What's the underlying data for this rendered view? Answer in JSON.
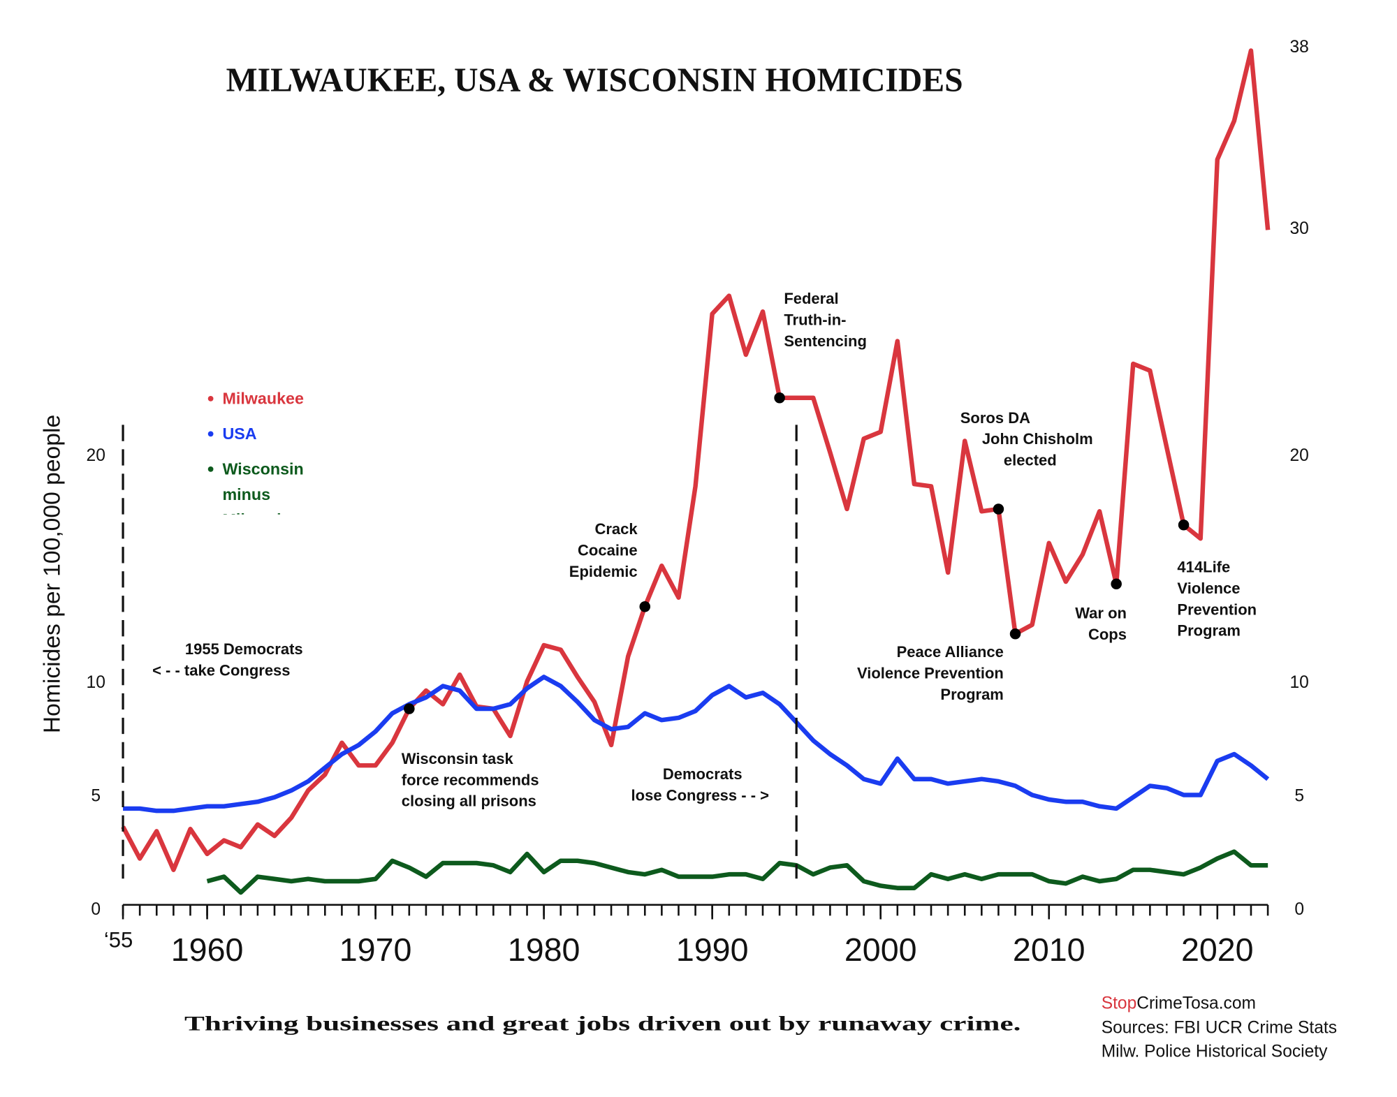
{
  "chart_data": {
    "type": "line",
    "title": "MILWAUKEE, USA & WISCONSIN HOMICIDES",
    "ylabel": "Homicides per 100,000 people",
    "footer": "Thriving businesses and great jobs driven out by runaway crime.",
    "source_site": [
      "Stop",
      "CrimeTosa.com"
    ],
    "sources": [
      "Sources: FBI UCR Crime Stats",
      "Milw. Police Historical Society"
    ],
    "x": [
      1955,
      1956,
      1957,
      1958,
      1959,
      1960,
      1961,
      1962,
      1963,
      1964,
      1965,
      1966,
      1967,
      1968,
      1969,
      1970,
      1971,
      1972,
      1973,
      1974,
      1975,
      1976,
      1977,
      1978,
      1979,
      1980,
      1981,
      1982,
      1983,
      1984,
      1985,
      1986,
      1987,
      1988,
      1989,
      1990,
      1991,
      1992,
      1993,
      1994,
      1995,
      1996,
      1997,
      1998,
      1999,
      2000,
      2001,
      2002,
      2003,
      2004,
      2005,
      2006,
      2007,
      2008,
      2009,
      2010,
      2011,
      2012,
      2013,
      2014,
      2015,
      2016,
      2017,
      2018,
      2019,
      2020,
      2021,
      2022,
      2023
    ],
    "series": [
      {
        "name": "Milwaukee",
        "color": "#d9363e",
        "values": [
          3.6,
          2.2,
          3.4,
          1.7,
          3.5,
          2.4,
          3.0,
          2.7,
          3.7,
          3.2,
          4.0,
          5.2,
          5.9,
          7.3,
          6.3,
          6.3,
          7.3,
          8.8,
          9.6,
          9.0,
          10.3,
          8.9,
          8.8,
          7.6,
          10.0,
          11.6,
          11.4,
          10.2,
          9.1,
          7.2,
          11.1,
          13.3,
          15.1,
          13.7,
          18.6,
          26.2,
          27.0,
          24.4,
          26.3,
          22.5,
          22.5,
          22.5,
          20.1,
          17.6,
          20.7,
          21.0,
          25.0,
          18.7,
          18.6,
          14.8,
          20.6,
          17.5,
          17.6,
          12.1,
          12.5,
          16.1,
          14.4,
          15.6,
          17.5,
          14.3,
          24.0,
          23.7,
          20.3,
          16.9,
          16.3,
          33.0,
          34.7,
          37.8,
          29.9
        ]
      },
      {
        "name": "USA",
        "color": "#1a3cf0",
        "values": [
          4.4,
          4.4,
          4.3,
          4.3,
          4.4,
          4.5,
          4.5,
          4.6,
          4.7,
          4.9,
          5.2,
          5.6,
          6.2,
          6.8,
          7.2,
          7.8,
          8.6,
          9.0,
          9.3,
          9.8,
          9.6,
          8.8,
          8.8,
          9.0,
          9.7,
          10.2,
          9.8,
          9.1,
          8.3,
          7.9,
          8.0,
          8.6,
          8.3,
          8.4,
          8.7,
          9.4,
          9.8,
          9.3,
          9.5,
          9.0,
          8.2,
          7.4,
          6.8,
          6.3,
          5.7,
          5.5,
          6.6,
          5.7,
          5.7,
          5.5,
          5.6,
          5.7,
          5.6,
          5.4,
          5.0,
          4.8,
          4.7,
          4.7,
          4.5,
          4.4,
          4.9,
          5.4,
          5.3,
          5.0,
          5.0,
          6.5,
          6.8,
          6.3,
          5.7
        ]
      },
      {
        "name": "Wisconsin minus Milwaukee",
        "color": "#0d5a1d",
        "values": [
          null,
          null,
          null,
          null,
          null,
          1.2,
          1.4,
          0.7,
          1.4,
          1.3,
          1.2,
          1.3,
          1.2,
          1.2,
          1.2,
          1.3,
          2.1,
          1.8,
          1.4,
          2.0,
          2.0,
          2.0,
          1.9,
          1.6,
          2.4,
          1.6,
          2.1,
          2.1,
          2.0,
          1.8,
          1.6,
          1.5,
          1.7,
          1.4,
          1.4,
          1.4,
          1.5,
          1.5,
          1.3,
          2.0,
          1.9,
          1.5,
          1.8,
          1.9,
          1.2,
          1.0,
          0.9,
          0.9,
          1.5,
          1.3,
          1.5,
          1.3,
          1.5,
          1.5,
          1.5,
          1.2,
          1.1,
          1.4,
          1.2,
          1.3,
          1.7,
          1.7,
          1.6,
          1.5,
          1.8,
          2.2,
          2.5,
          1.9,
          1.9
        ]
      }
    ],
    "xlim": [
      1955,
      2023
    ],
    "ylim": [
      0,
      38
    ],
    "y2lim": [
      0,
      38
    ],
    "xticks": [
      {
        "value": 1955,
        "label": "‘55"
      },
      1960,
      1970,
      1980,
      1990,
      2000,
      2010,
      2020
    ],
    "xminor_ticks": [
      1955,
      1956,
      1957,
      1958,
      1959,
      1960,
      1961,
      1962,
      1963,
      1964,
      1965,
      1966,
      1967,
      1968,
      1969,
      1970,
      1971,
      1972,
      1973,
      1974,
      1975,
      1976,
      1977,
      1978,
      1979,
      1980,
      1981,
      1982,
      1983,
      1984,
      1985,
      1986,
      1987,
      1988,
      1989,
      1990,
      1991,
      1992,
      1993,
      1994,
      1995,
      1996,
      1997,
      1998,
      1999,
      2000,
      2001,
      2002,
      2003,
      2004,
      2005,
      2006,
      2007,
      2008,
      2009,
      2010,
      2011,
      2012,
      2013,
      2014,
      2015,
      2016,
      2017,
      2018,
      2019,
      2020,
      2021,
      2022,
      2023
    ],
    "yticks": [
      0,
      5,
      10,
      20
    ],
    "y2ticks": [
      0,
      5,
      10,
      20,
      30,
      38
    ],
    "annotations": [
      {
        "lines": [
          "Wisconsin task",
          "force recommends",
          "closing all prisons"
        ],
        "x": 1972,
        "marker": "dot"
      },
      {
        "lines": [
          "Crack",
          "Cocaine",
          "Epidemic"
        ],
        "x": 1986,
        "marker": "dot"
      },
      {
        "lines": [
          "Federal",
          "Truth-in-",
          "Sentencing"
        ],
        "x": 1994,
        "marker": "dot"
      },
      {
        "lines": [
          "Soros DA",
          "John Chisholm",
          "elected"
        ],
        "x": 2007,
        "marker": "dot"
      },
      {
        "lines": [
          "Peace Alliance",
          "Violence Prevention",
          "Program"
        ],
        "x": 2008,
        "marker": "dot"
      },
      {
        "lines": [
          "War on",
          "Cops"
        ],
        "x": 2014,
        "marker": "dot"
      },
      {
        "lines": [
          "414Life",
          "Violence",
          "Prevention",
          "Program"
        ],
        "x": 2018,
        "marker": "dot"
      },
      {
        "lines": [
          "1955 Democrats",
          "< - - take Congress"
        ],
        "x": 1955,
        "marker": "dashed-line"
      },
      {
        "lines": [
          "Democrats",
          "lose Congress - - >"
        ],
        "x": 1995,
        "marker": "dashed-line"
      }
    ]
  }
}
